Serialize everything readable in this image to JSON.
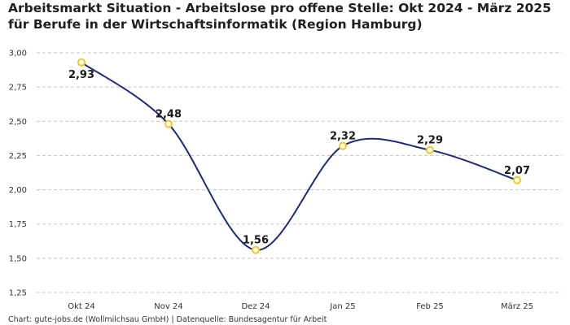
{
  "chart_data": {
    "type": "line",
    "title": "Arbeitsmarkt Situation - Arbeitslose pro offene Stelle: Okt 2024 - März 2025 für Berufe in der Wirtschaftsinformatik (Region Hamburg)",
    "categories": [
      "Okt 24",
      "Nov 24",
      "Dez 24",
      "Jan 25",
      "Feb 25",
      "März 25"
    ],
    "values": [
      2.93,
      2.48,
      1.56,
      2.32,
      2.29,
      2.07
    ],
    "data_labels": [
      "2,93",
      "2,48",
      "1,56",
      "2,32",
      "2,29",
      "2,07"
    ],
    "ylim": [
      1.25,
      3.0
    ],
    "y_ticks": [
      1.25,
      1.5,
      1.75,
      2.0,
      2.25,
      2.5,
      2.75,
      3.0
    ],
    "y_tick_labels": [
      "1,25",
      "1,50",
      "1,75",
      "2,00",
      "2,25",
      "2,50",
      "2,75",
      "3,00"
    ],
    "xlabel": "",
    "ylabel": "",
    "grid": "horizontal dashed",
    "legend": "none",
    "line_color": "#1f2a7a",
    "marker_color": "#f2c81e"
  },
  "source": "Chart: gute-jobs.de (Wollmilchsau GmbH) | Datenquelle: Bundesagentur für Arbeit"
}
